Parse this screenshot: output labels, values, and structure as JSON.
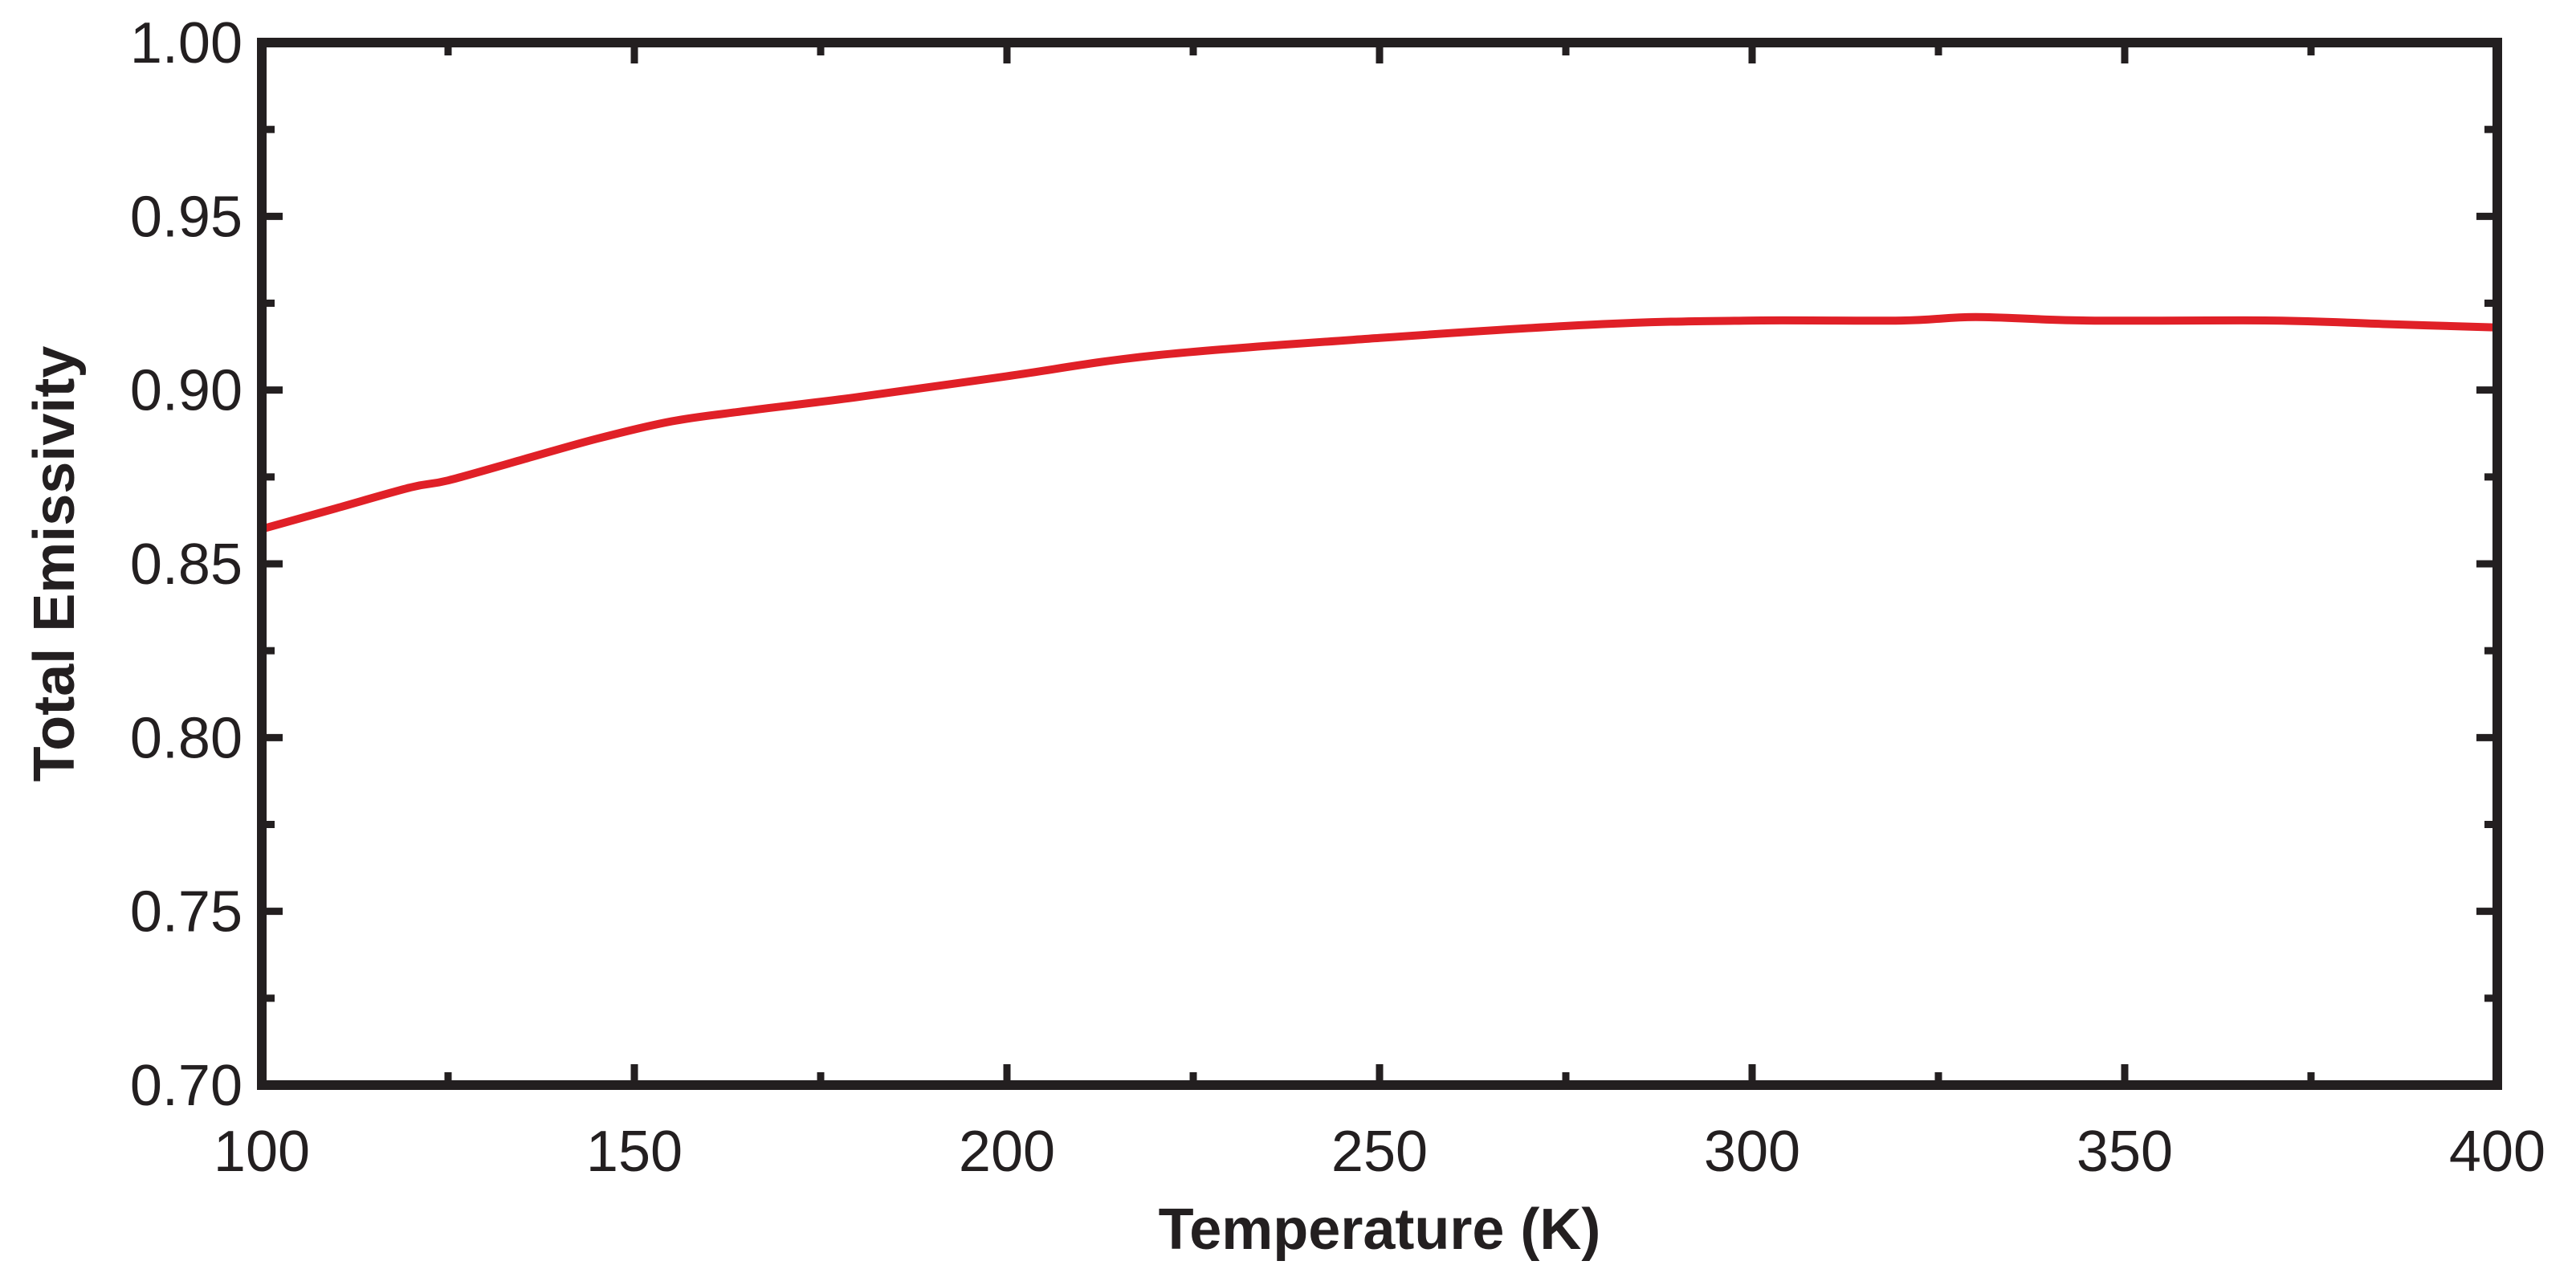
{
  "chart_data": {
    "type": "line",
    "title": "",
    "xlabel": "Temperature (K)",
    "ylabel": "Total Emissivity",
    "xlim": [
      100,
      400
    ],
    "ylim": [
      0.7,
      1.0
    ],
    "x_ticks": [
      100,
      150,
      200,
      250,
      300,
      350,
      400
    ],
    "x_tick_labels": [
      "100",
      "150",
      "200",
      "250",
      "300",
      "350",
      "400"
    ],
    "x_minor_ticks": [
      125,
      175,
      225,
      275,
      325,
      375
    ],
    "y_ticks": [
      0.7,
      0.75,
      0.8,
      0.85,
      0.9,
      0.95,
      1.0
    ],
    "y_tick_labels": [
      "0.70",
      "0.75",
      "0.80",
      "0.85",
      "0.90",
      "0.95",
      "1.00"
    ],
    "y_minor_ticks": [
      0.725,
      0.775,
      0.825,
      0.875,
      0.925,
      0.975
    ],
    "grid": false,
    "legend": "none",
    "series": [
      {
        "color": "#e02027",
        "x": [
          100,
          110,
          120,
          125,
          135,
          145,
          155,
          165,
          180,
          200,
          220,
          250,
          280,
          300,
          320,
          330,
          345,
          370,
          385,
          400
        ],
        "y": [
          0.86,
          0.866,
          0.872,
          0.874,
          0.88,
          0.886,
          0.891,
          0.894,
          0.898,
          0.904,
          0.91,
          0.915,
          0.919,
          0.92,
          0.92,
          0.921,
          0.92,
          0.92,
          0.919,
          0.918
        ]
      }
    ],
    "colors": {
      "axis": "#231f20",
      "line": "#e02027",
      "background": "#ffffff"
    }
  }
}
